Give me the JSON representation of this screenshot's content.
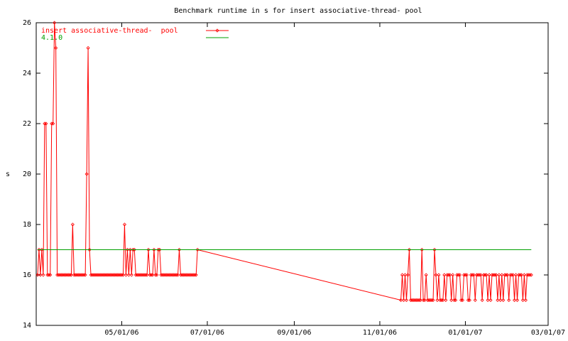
{
  "chart_data": {
    "type": "line",
    "title": "Benchmark runtime in s for insert associative-thread-  pool",
    "y_label": "s",
    "xlim": [
      "2006-03-01",
      "2007-03-01"
    ],
    "xticks": [
      {
        "value": "2006-05-01",
        "label": "05/01/06"
      },
      {
        "value": "2006-07-01",
        "label": "07/01/06"
      },
      {
        "value": "2006-09-01",
        "label": "09/01/06"
      },
      {
        "value": "2006-11-01",
        "label": "11/01/06"
      },
      {
        "value": "2007-01-01",
        "label": "01/01/07"
      },
      {
        "value": "2007-03-01",
        "label": "03/01/07"
      }
    ],
    "ylim": [
      14,
      26
    ],
    "yticks": [
      14,
      16,
      18,
      20,
      22,
      24,
      26
    ],
    "legend": "top-left",
    "series": [
      {
        "name": "insert associative-thread-  pool",
        "color": "#ff0000",
        "markers": true,
        "x": [
          "2006-03-02",
          "2006-03-03",
          "2006-03-04",
          "2006-03-05",
          "2006-03-06",
          "2006-03-07",
          "2006-03-08",
          "2006-03-09",
          "2006-03-10",
          "2006-03-11",
          "2006-03-12",
          "2006-03-13",
          "2006-03-14",
          "2006-03-15",
          "2006-03-16",
          "2006-03-17",
          "2006-03-18",
          "2006-03-19",
          "2006-03-20",
          "2006-03-21",
          "2006-03-22",
          "2006-03-23",
          "2006-03-24",
          "2006-03-25",
          "2006-03-26",
          "2006-03-27",
          "2006-03-28",
          "2006-03-29",
          "2006-03-30",
          "2006-03-31",
          "2006-04-01",
          "2006-04-02",
          "2006-04-03",
          "2006-04-04",
          "2006-04-05",
          "2006-04-06",
          "2006-04-07",
          "2006-04-08",
          "2006-04-09",
          "2006-04-10",
          "2006-04-11",
          "2006-04-12",
          "2006-04-13",
          "2006-04-14",
          "2006-04-15",
          "2006-04-16",
          "2006-04-17",
          "2006-04-18",
          "2006-04-19",
          "2006-04-20",
          "2006-04-21",
          "2006-04-22",
          "2006-04-23",
          "2006-04-24",
          "2006-04-25",
          "2006-04-26",
          "2006-04-27",
          "2006-04-28",
          "2006-04-29",
          "2006-04-30",
          "2006-05-01",
          "2006-05-02",
          "2006-05-03",
          "2006-05-04",
          "2006-05-05",
          "2006-05-06",
          "2006-05-07",
          "2006-05-08",
          "2006-05-09",
          "2006-05-10",
          "2006-05-11",
          "2006-05-12",
          "2006-05-13",
          "2006-05-14",
          "2006-05-15",
          "2006-05-16",
          "2006-05-17",
          "2006-05-18",
          "2006-05-19",
          "2006-05-20",
          "2006-05-21",
          "2006-05-22",
          "2006-05-23",
          "2006-05-24",
          "2006-05-25",
          "2006-05-26",
          "2006-05-27",
          "2006-05-28",
          "2006-05-29",
          "2006-05-30",
          "2006-05-31",
          "2006-06-01",
          "2006-06-02",
          "2006-06-03",
          "2006-06-04",
          "2006-06-05",
          "2006-06-06",
          "2006-06-07",
          "2006-06-08",
          "2006-06-09",
          "2006-06-10",
          "2006-06-11",
          "2006-06-12",
          "2006-06-13",
          "2006-06-14",
          "2006-06-15",
          "2006-06-16",
          "2006-06-17",
          "2006-06-18",
          "2006-06-19",
          "2006-06-20",
          "2006-06-21",
          "2006-06-22",
          "2006-06-23",
          "2006-06-24",
          "2006-11-16",
          "2006-11-17",
          "2006-11-18",
          "2006-11-19",
          "2006-11-20",
          "2006-11-21",
          "2006-11-22",
          "2006-11-23",
          "2006-11-24",
          "2006-11-25",
          "2006-11-26",
          "2006-11-27",
          "2006-11-28",
          "2006-11-29",
          "2006-11-30",
          "2006-12-01",
          "2006-12-02",
          "2006-12-03",
          "2006-12-04",
          "2006-12-05",
          "2006-12-06",
          "2006-12-07",
          "2006-12-08",
          "2006-12-09",
          "2006-12-10",
          "2006-12-11",
          "2006-12-12",
          "2006-12-13",
          "2006-12-14",
          "2006-12-15",
          "2006-12-16",
          "2006-12-17",
          "2006-12-18",
          "2006-12-19",
          "2006-12-20",
          "2006-12-21",
          "2006-12-22",
          "2006-12-23",
          "2006-12-24",
          "2006-12-25",
          "2006-12-26",
          "2006-12-27",
          "2006-12-28",
          "2006-12-29",
          "2006-12-30",
          "2006-12-31",
          "2007-01-01",
          "2007-01-02",
          "2007-01-03",
          "2007-01-04",
          "2007-01-05",
          "2007-01-06",
          "2007-01-07",
          "2007-01-08",
          "2007-01-09",
          "2007-01-10",
          "2007-01-11",
          "2007-01-12",
          "2007-01-13",
          "2007-01-14",
          "2007-01-15",
          "2007-01-16",
          "2007-01-17",
          "2007-01-18",
          "2007-01-19",
          "2007-01-20",
          "2007-01-21",
          "2007-01-22",
          "2007-01-23",
          "2007-01-24",
          "2007-01-25",
          "2007-01-26",
          "2007-01-27",
          "2007-01-28",
          "2007-01-29",
          "2007-01-30",
          "2007-01-31",
          "2007-02-01",
          "2007-02-02",
          "2007-02-03",
          "2007-02-04",
          "2007-02-05",
          "2007-02-06",
          "2007-02-07",
          "2007-02-08",
          "2007-02-09",
          "2007-02-10",
          "2007-02-11",
          "2007-02-12",
          "2007-02-13",
          "2007-02-14",
          "2007-02-15",
          "2007-02-16",
          "2007-02-17"
        ],
        "values": [
          16,
          17,
          16,
          17,
          16,
          22,
          22,
          16,
          16,
          16,
          22,
          22,
          26,
          25,
          16,
          16,
          16,
          16,
          16,
          16,
          16,
          16,
          16,
          16,
          16,
          18,
          16,
          16,
          16,
          16,
          16,
          16,
          16,
          16,
          16,
          20,
          25,
          17,
          16,
          16,
          16,
          16,
          16,
          16,
          16,
          16,
          16,
          16,
          16,
          16,
          16,
          16,
          16,
          16,
          16,
          16,
          16,
          16,
          16,
          16,
          16,
          16,
          18,
          16,
          17,
          16,
          17,
          16,
          17,
          17,
          16,
          16,
          16,
          16,
          16,
          16,
          16,
          16,
          16,
          17,
          16,
          16,
          16,
          17,
          16,
          16,
          17,
          17,
          16,
          16,
          16,
          16,
          16,
          16,
          16,
          16,
          16,
          16,
          16,
          16,
          16,
          17,
          16,
          16,
          16,
          16,
          16,
          16,
          16,
          16,
          16,
          16,
          16,
          16,
          17,
          15,
          16,
          15,
          16,
          15,
          16,
          17,
          15,
          15,
          15,
          15,
          15,
          15,
          15,
          15,
          17,
          15,
          15,
          16,
          15,
          15,
          15,
          15,
          15,
          17,
          16,
          15,
          16,
          15,
          15,
          15,
          16,
          15,
          16,
          16,
          16,
          15,
          16,
          15,
          15,
          16,
          16,
          16,
          15,
          15,
          16,
          16,
          16,
          15,
          15,
          16,
          16,
          16,
          15,
          16,
          16,
          16,
          16,
          15,
          16,
          16,
          16,
          15,
          16,
          15,
          16,
          16,
          16,
          16,
          15,
          16,
          15,
          16,
          15,
          16,
          16,
          16,
          15,
          16,
          16,
          16,
          15,
          16,
          15,
          16,
          16,
          16,
          15,
          16,
          15,
          16,
          16,
          16,
          16
        ]
      },
      {
        "name": "4.1.0",
        "color": "#00a000",
        "markers": false,
        "x": [
          "2006-03-02",
          "2007-02-17"
        ],
        "values": [
          17,
          17
        ]
      }
    ]
  }
}
